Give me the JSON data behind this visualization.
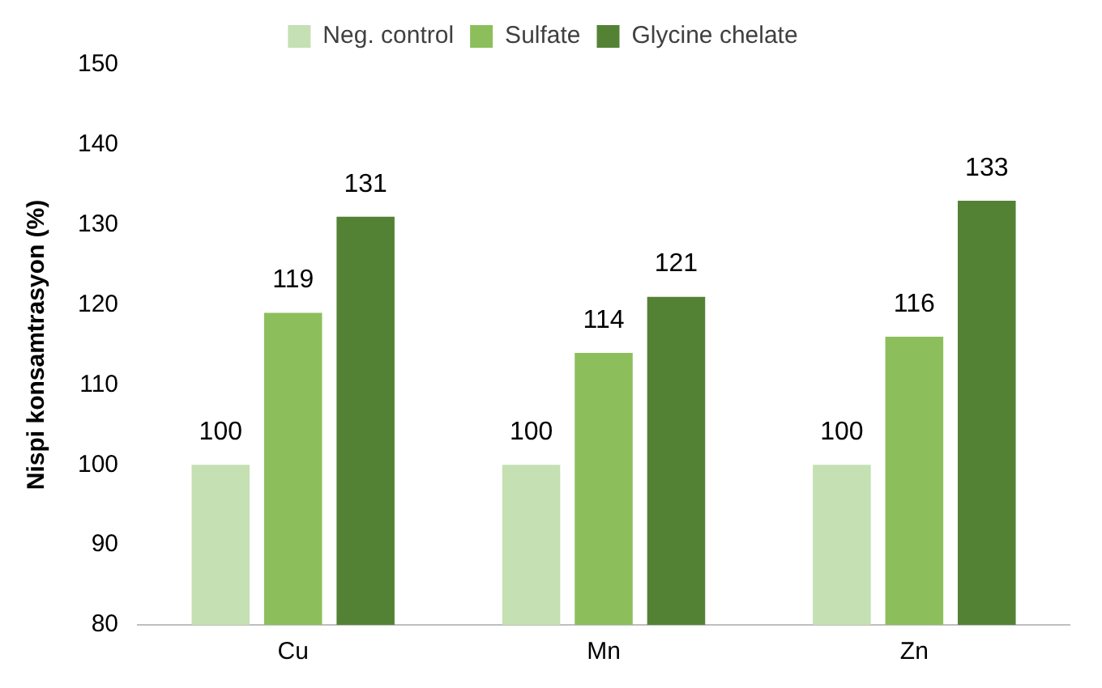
{
  "chart_data": {
    "type": "bar",
    "ylabel": "Nispi konsamtrasyon (%)",
    "categories": [
      "Cu",
      "Mn",
      "Zn"
    ],
    "series": [
      {
        "name": "Neg. control",
        "color": "#c5e0b3",
        "values": [
          100,
          100,
          100
        ]
      },
      {
        "name": "Sulfate",
        "color": "#8cbf5b",
        "values": [
          119,
          114,
          116
        ]
      },
      {
        "name": "Glycine chelate",
        "color": "#548235",
        "values": [
          131,
          121,
          133
        ]
      }
    ],
    "ylim": [
      80,
      150
    ],
    "yticks": [
      80,
      90,
      100,
      110,
      120,
      130,
      140,
      150
    ],
    "grid": false,
    "legend": "top",
    "data_labels": true
  }
}
